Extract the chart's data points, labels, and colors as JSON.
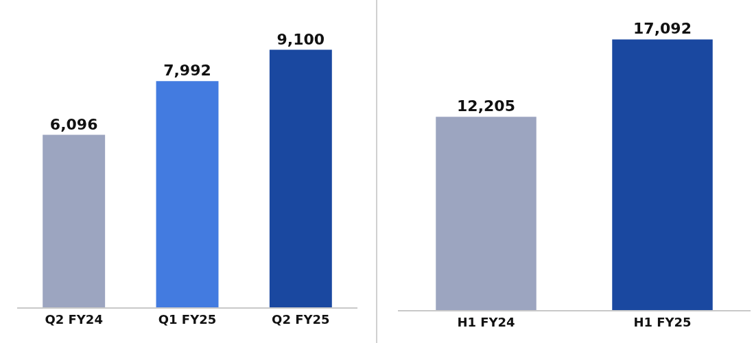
{
  "chart_data": [
    {
      "type": "bar",
      "categories": [
        "Q2 FY24",
        "Q1 FY25",
        "Q2 FY25"
      ],
      "values": [
        6096,
        7992,
        9100
      ],
      "value_labels": [
        "6,096",
        "7,992",
        "9,100"
      ],
      "colors": [
        "#9ca5c0",
        "#437be0",
        "#1a48a0"
      ],
      "tick_labels": "x",
      "grid": false,
      "legend": false
    },
    {
      "type": "bar",
      "categories": [
        "H1 FY24",
        "H1 FY25"
      ],
      "values": [
        12205,
        17092
      ],
      "value_labels": [
        "12,205",
        "17,092"
      ],
      "colors": [
        "#9ca5c0",
        "#1a48a0"
      ],
      "tick_labels": "x",
      "grid": false,
      "legend": false
    }
  ]
}
